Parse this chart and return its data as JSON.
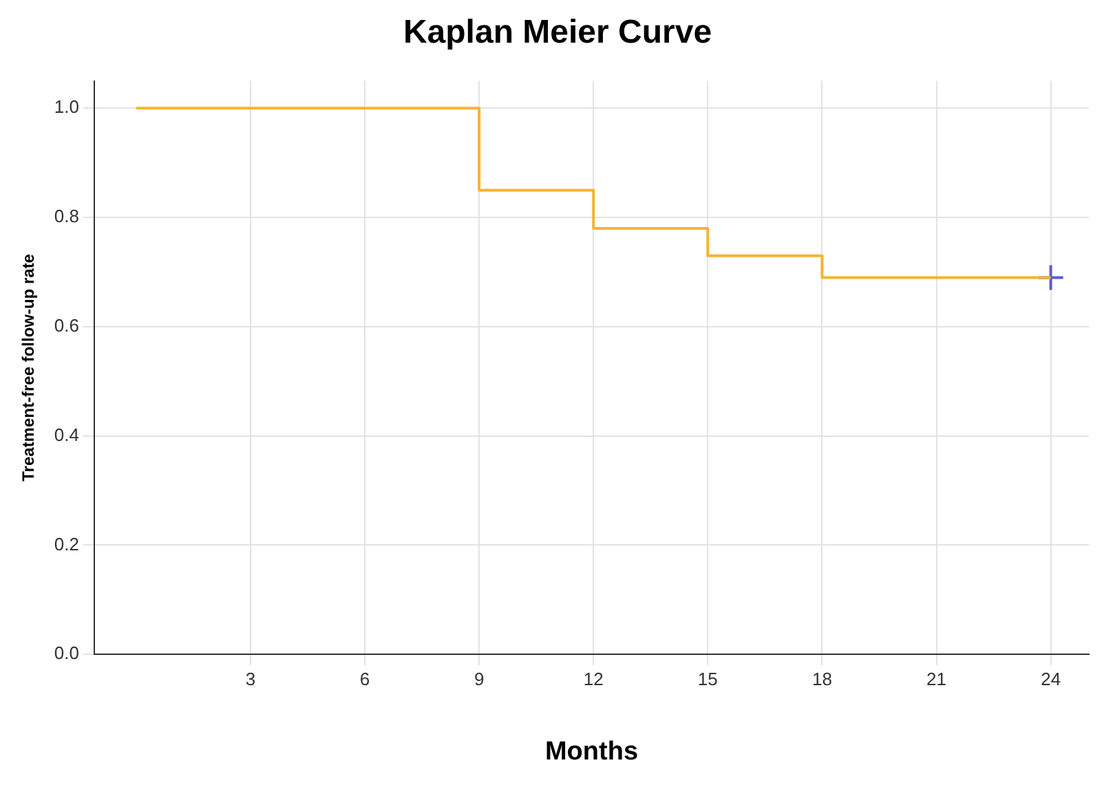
{
  "chart_data": {
    "type": "step",
    "title": "Kaplan Meier Curve",
    "xlabel": "Months",
    "ylabel": "Treatment-free follow-up rate",
    "xlim": [
      -1.1,
      25
    ],
    "xticks": [
      3,
      6,
      9,
      12,
      15,
      18,
      21,
      24
    ],
    "ylim": [
      0,
      1.05
    ],
    "yticks": [
      {
        "value": 0,
        "label": "0.0"
      },
      {
        "value": 0.2,
        "label": "0.2"
      },
      {
        "value": 0.4,
        "label": "0.4"
      },
      {
        "value": 0.6,
        "label": "0.6"
      },
      {
        "value": 0.8,
        "label": "0.8"
      },
      {
        "value": 1,
        "label": "1.0"
      }
    ],
    "grid": true,
    "series": [
      {
        "color": "#f7b232",
        "x": [
          0,
          9,
          12,
          15,
          18,
          24
        ],
        "values": [
          1,
          0.85,
          0.78,
          0.73,
          0.69,
          0.69
        ],
        "marker": "none"
      },
      {
        "type": "scatter",
        "color": "#5b5bd6",
        "x": [
          24
        ],
        "values": [
          0.69
        ],
        "marker": "cross"
      }
    ]
  }
}
